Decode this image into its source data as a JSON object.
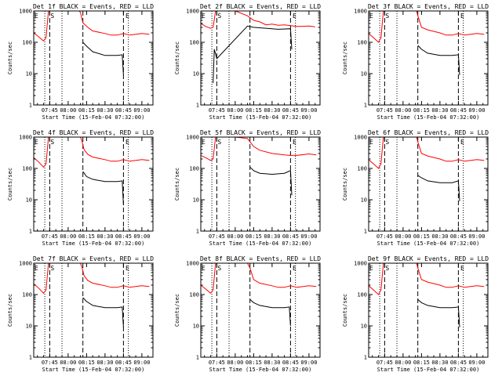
{
  "colors": {
    "events": "#000000",
    "lld": "#ff0000",
    "background": "#ffffff"
  },
  "xlabel": "Start Time (15-Feb-04 07:32:00)",
  "ylabel": "Counts/sec",
  "x_tick_labels": [
    "07:45",
    "08:00",
    "08:15",
    "08:30",
    "08:45",
    "09:00"
  ],
  "y_tick_labels": [
    "1",
    "10",
    "100",
    "1000"
  ],
  "markers": {
    "E": [
      "07:32",
      "08:46"
    ],
    "S": [
      "07:45"
    ],
    "dashed": [
      "07:45",
      "08:12",
      "08:45"
    ],
    "dotted": [
      "07:41",
      "07:55",
      "08:49"
    ]
  },
  "chart_data": [
    {
      "type": "line",
      "title": "Det 1f BLACK = Events, RED = LLD",
      "xlim": [
        "07:32",
        "09:09"
      ],
      "ylim": [
        1,
        1000
      ],
      "yscale": "log",
      "series": [
        {
          "name": "LLD",
          "color": "#ff0000",
          "x": [
            "07:32",
            "07:36",
            "07:40",
            "07:42",
            "07:44",
            "07:45",
            "08:09",
            "08:10",
            "08:12",
            "08:16",
            "08:20",
            "08:30",
            "08:35",
            "08:40",
            "08:45",
            "08:50",
            "09:00",
            "09:06"
          ],
          "values": [
            200,
            150,
            110,
            140,
            1000,
            1000,
            1000,
            900,
            420,
            300,
            230,
            190,
            170,
            170,
            190,
            170,
            190,
            180
          ]
        },
        {
          "name": "Events",
          "color": "#000000",
          "x": [
            "08:12",
            "08:15",
            "08:20",
            "08:30",
            "08:40",
            "08:44",
            "08:45"
          ],
          "values": [
            100,
            75,
            50,
            38,
            38,
            40,
            9
          ]
        }
      ]
    },
    {
      "type": "line",
      "title": "Det 2f BLACK = Events, RED = LLD",
      "xlim": [
        "07:32",
        "09:09"
      ],
      "ylim": [
        1,
        1000
      ],
      "yscale": "log",
      "series": [
        {
          "name": "LLD",
          "color": "#ff0000",
          "x": [
            "07:32",
            "07:36",
            "07:40",
            "07:42",
            "07:44",
            "07:45",
            "08:00",
            "08:10",
            "08:15",
            "08:20",
            "08:25",
            "08:30",
            "08:35",
            "08:40",
            "08:45",
            "08:50",
            "09:00",
            "09:05"
          ],
          "values": [
            400,
            320,
            280,
            300,
            1000,
            1000,
            1000,
            700,
            500,
            450,
            360,
            380,
            350,
            360,
            340,
            320,
            330,
            310
          ]
        },
        {
          "name": "Events",
          "color": "#000000",
          "x": [
            "07:42",
            "07:43",
            "07:45",
            "08:10",
            "08:15",
            "08:25",
            "08:35",
            "08:45",
            "08:46"
          ],
          "values": [
            5,
            60,
            30,
            330,
            300,
            280,
            260,
            270,
            60
          ]
        }
      ]
    },
    {
      "type": "line",
      "title": "Det 3f BLACK = Events, RED = LLD",
      "xlim": [
        "07:32",
        "09:09"
      ],
      "ylim": [
        1,
        1000
      ],
      "yscale": "log",
      "series": [
        {
          "name": "LLD",
          "color": "#ff0000",
          "x": [
            "07:32",
            "07:36",
            "07:40",
            "07:42",
            "07:44",
            "07:45",
            "08:11",
            "08:12",
            "08:15",
            "08:20",
            "08:30",
            "08:35",
            "08:40",
            "08:45",
            "08:50",
            "09:00",
            "09:06"
          ],
          "values": [
            190,
            140,
            100,
            140,
            1000,
            1000,
            1000,
            700,
            300,
            250,
            200,
            170,
            170,
            190,
            170,
            190,
            180
          ]
        },
        {
          "name": "Events",
          "color": "#000000",
          "x": [
            "08:12",
            "08:15",
            "08:20",
            "08:30",
            "08:40",
            "08:45",
            "08:46"
          ],
          "values": [
            80,
            60,
            45,
            38,
            38,
            40,
            9
          ]
        }
      ]
    },
    {
      "type": "line",
      "title": "Det 4f BLACK = Events, RED = LLD",
      "xlim": [
        "07:32",
        "09:09"
      ],
      "ylim": [
        1,
        1000
      ],
      "yscale": "log",
      "series": [
        {
          "name": "LLD",
          "color": "#ff0000",
          "x": [
            "07:32",
            "07:36",
            "07:40",
            "07:42",
            "07:44",
            "07:45",
            "08:10",
            "08:11",
            "08:13",
            "08:16",
            "08:20",
            "08:30",
            "08:35",
            "08:40",
            "08:45",
            "08:50",
            "09:00",
            "09:06"
          ],
          "values": [
            220,
            160,
            110,
            140,
            1000,
            1000,
            1000,
            800,
            400,
            280,
            230,
            190,
            170,
            170,
            190,
            170,
            190,
            180
          ]
        },
        {
          "name": "Events",
          "color": "#000000",
          "x": [
            "08:12",
            "08:15",
            "08:20",
            "08:30",
            "08:40",
            "08:44",
            "08:45"
          ],
          "values": [
            80,
            55,
            45,
            38,
            38,
            40,
            7
          ]
        }
      ]
    },
    {
      "type": "line",
      "title": "Det 5f BLACK = Events, RED = LLD",
      "xlim": [
        "07:32",
        "09:09"
      ],
      "ylim": [
        1,
        1000
      ],
      "yscale": "log",
      "series": [
        {
          "name": "LLD",
          "color": "#ff0000",
          "x": [
            "07:32",
            "07:36",
            "07:40",
            "07:42",
            "07:44",
            "07:45",
            "08:00",
            "08:10",
            "08:15",
            "08:20",
            "08:30",
            "08:40",
            "08:45",
            "08:50",
            "09:00",
            "09:06"
          ],
          "values": [
            260,
            220,
            180,
            200,
            1000,
            1000,
            1000,
            900,
            500,
            380,
            300,
            270,
            260,
            260,
            290,
            270
          ]
        },
        {
          "name": "Events",
          "color": "#000000",
          "x": [
            "08:12",
            "08:15",
            "08:20",
            "08:30",
            "08:40",
            "08:45",
            "08:46"
          ],
          "values": [
            110,
            85,
            70,
            65,
            70,
            85,
            14
          ]
        }
      ]
    },
    {
      "type": "line",
      "title": "Det 6f BLACK = Events, RED = LLD",
      "xlim": [
        "07:32",
        "09:09"
      ],
      "ylim": [
        1,
        1000
      ],
      "yscale": "log",
      "series": [
        {
          "name": "LLD",
          "color": "#ff0000",
          "x": [
            "07:32",
            "07:36",
            "07:40",
            "07:42",
            "07:44",
            "07:45",
            "08:11",
            "08:12",
            "08:15",
            "08:20",
            "08:30",
            "08:35",
            "08:40",
            "08:45",
            "08:50",
            "09:00",
            "09:06"
          ],
          "values": [
            190,
            140,
            100,
            140,
            1000,
            1000,
            1000,
            700,
            300,
            250,
            200,
            170,
            170,
            190,
            170,
            190,
            180
          ]
        },
        {
          "name": "Events",
          "color": "#000000",
          "x": [
            "08:12",
            "08:15",
            "08:20",
            "08:30",
            "08:40",
            "08:45",
            "08:46"
          ],
          "values": [
            60,
            50,
            40,
            35,
            35,
            40,
            9
          ]
        }
      ]
    },
    {
      "type": "line",
      "title": "Det 7f BLACK = Events, RED = LLD",
      "xlim": [
        "07:32",
        "09:09"
      ],
      "ylim": [
        1,
        1000
      ],
      "yscale": "log",
      "series": [
        {
          "name": "LLD",
          "color": "#ff0000",
          "x": [
            "07:32",
            "07:36",
            "07:40",
            "07:42",
            "07:44",
            "07:45",
            "08:10",
            "08:11",
            "08:13",
            "08:16",
            "08:20",
            "08:30",
            "08:35",
            "08:40",
            "08:45",
            "08:50",
            "09:00",
            "09:06"
          ],
          "values": [
            220,
            160,
            110,
            140,
            1000,
            1000,
            1000,
            800,
            400,
            280,
            230,
            190,
            170,
            170,
            190,
            170,
            190,
            180
          ]
        },
        {
          "name": "Events",
          "color": "#000000",
          "x": [
            "08:12",
            "08:15",
            "08:20",
            "08:30",
            "08:40",
            "08:44",
            "08:45"
          ],
          "values": [
            80,
            60,
            45,
            38,
            38,
            40,
            9
          ]
        }
      ]
    },
    {
      "type": "line",
      "title": "Det 8f BLACK = Events, RED = LLD",
      "xlim": [
        "07:32",
        "09:09"
      ],
      "ylim": [
        1,
        1000
      ],
      "yscale": "log",
      "series": [
        {
          "name": "LLD",
          "color": "#ff0000",
          "x": [
            "07:32",
            "07:36",
            "07:40",
            "07:42",
            "07:44",
            "07:45",
            "08:10",
            "08:12",
            "08:15",
            "08:20",
            "08:30",
            "08:35",
            "08:40",
            "08:45",
            "08:50",
            "09:00",
            "09:06"
          ],
          "values": [
            200,
            150,
            110,
            140,
            1000,
            1000,
            1000,
            700,
            300,
            230,
            190,
            170,
            170,
            190,
            170,
            190,
            180
          ]
        },
        {
          "name": "Events",
          "color": "#000000",
          "x": [
            "08:12",
            "08:15",
            "08:20",
            "08:30",
            "08:40",
            "08:44",
            "08:45"
          ],
          "values": [
            70,
            55,
            45,
            38,
            38,
            40,
            10
          ]
        }
      ]
    },
    {
      "type": "line",
      "title": "Det 9f BLACK = Events, RED = LLD",
      "xlim": [
        "07:32",
        "09:09"
      ],
      "ylim": [
        1,
        1000
      ],
      "yscale": "log",
      "series": [
        {
          "name": "LLD",
          "color": "#ff0000",
          "x": [
            "07:32",
            "07:36",
            "07:40",
            "07:42",
            "07:44",
            "07:45",
            "08:11",
            "08:12",
            "08:15",
            "08:20",
            "08:30",
            "08:35",
            "08:40",
            "08:45",
            "08:50",
            "09:00",
            "09:06"
          ],
          "values": [
            190,
            140,
            100,
            140,
            1000,
            1000,
            1000,
            700,
            300,
            250,
            200,
            170,
            170,
            190,
            170,
            190,
            180
          ]
        },
        {
          "name": "Events",
          "color": "#000000",
          "x": [
            "08:12",
            "08:15",
            "08:20",
            "08:30",
            "08:40",
            "08:45",
            "08:46"
          ],
          "values": [
            70,
            55,
            45,
            38,
            38,
            40,
            9
          ]
        }
      ]
    }
  ]
}
